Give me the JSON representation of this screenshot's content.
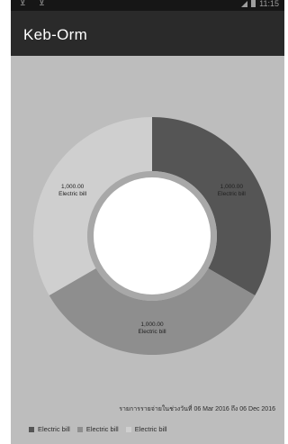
{
  "statusbar": {
    "left_icons": "⊻ ⊻",
    "time": "11:15"
  },
  "app": {
    "title": "Keb-Orm"
  },
  "colors": {
    "background": "#bdbdbd",
    "appbar": "#2a2a2a",
    "slice_1": "#555555",
    "slice_2": "#8e8e8e",
    "slice_3": "#cfcfcf",
    "center": "#ffffff",
    "inner_ring": "#a8a8a8"
  },
  "chart_data": {
    "type": "pie",
    "variant": "donut",
    "slices": [
      {
        "label": "Electric bill",
        "value": 1000.0,
        "value_label": "1,000.00"
      },
      {
        "label": "Electric bill",
        "value": 1000.0,
        "value_label": "1,000.00"
      },
      {
        "label": "Electric bill",
        "value": 1000.0,
        "value_label": "1,000.00"
      }
    ],
    "legend_placement": "bottom-left",
    "legend": [
      "Electric bill",
      "Electric bill",
      "Electric bill"
    ]
  },
  "range_note": "รายการรายจ่ายในช่วงวันที่ 06 Mar 2016 ถึง 06 Dec 2016"
}
